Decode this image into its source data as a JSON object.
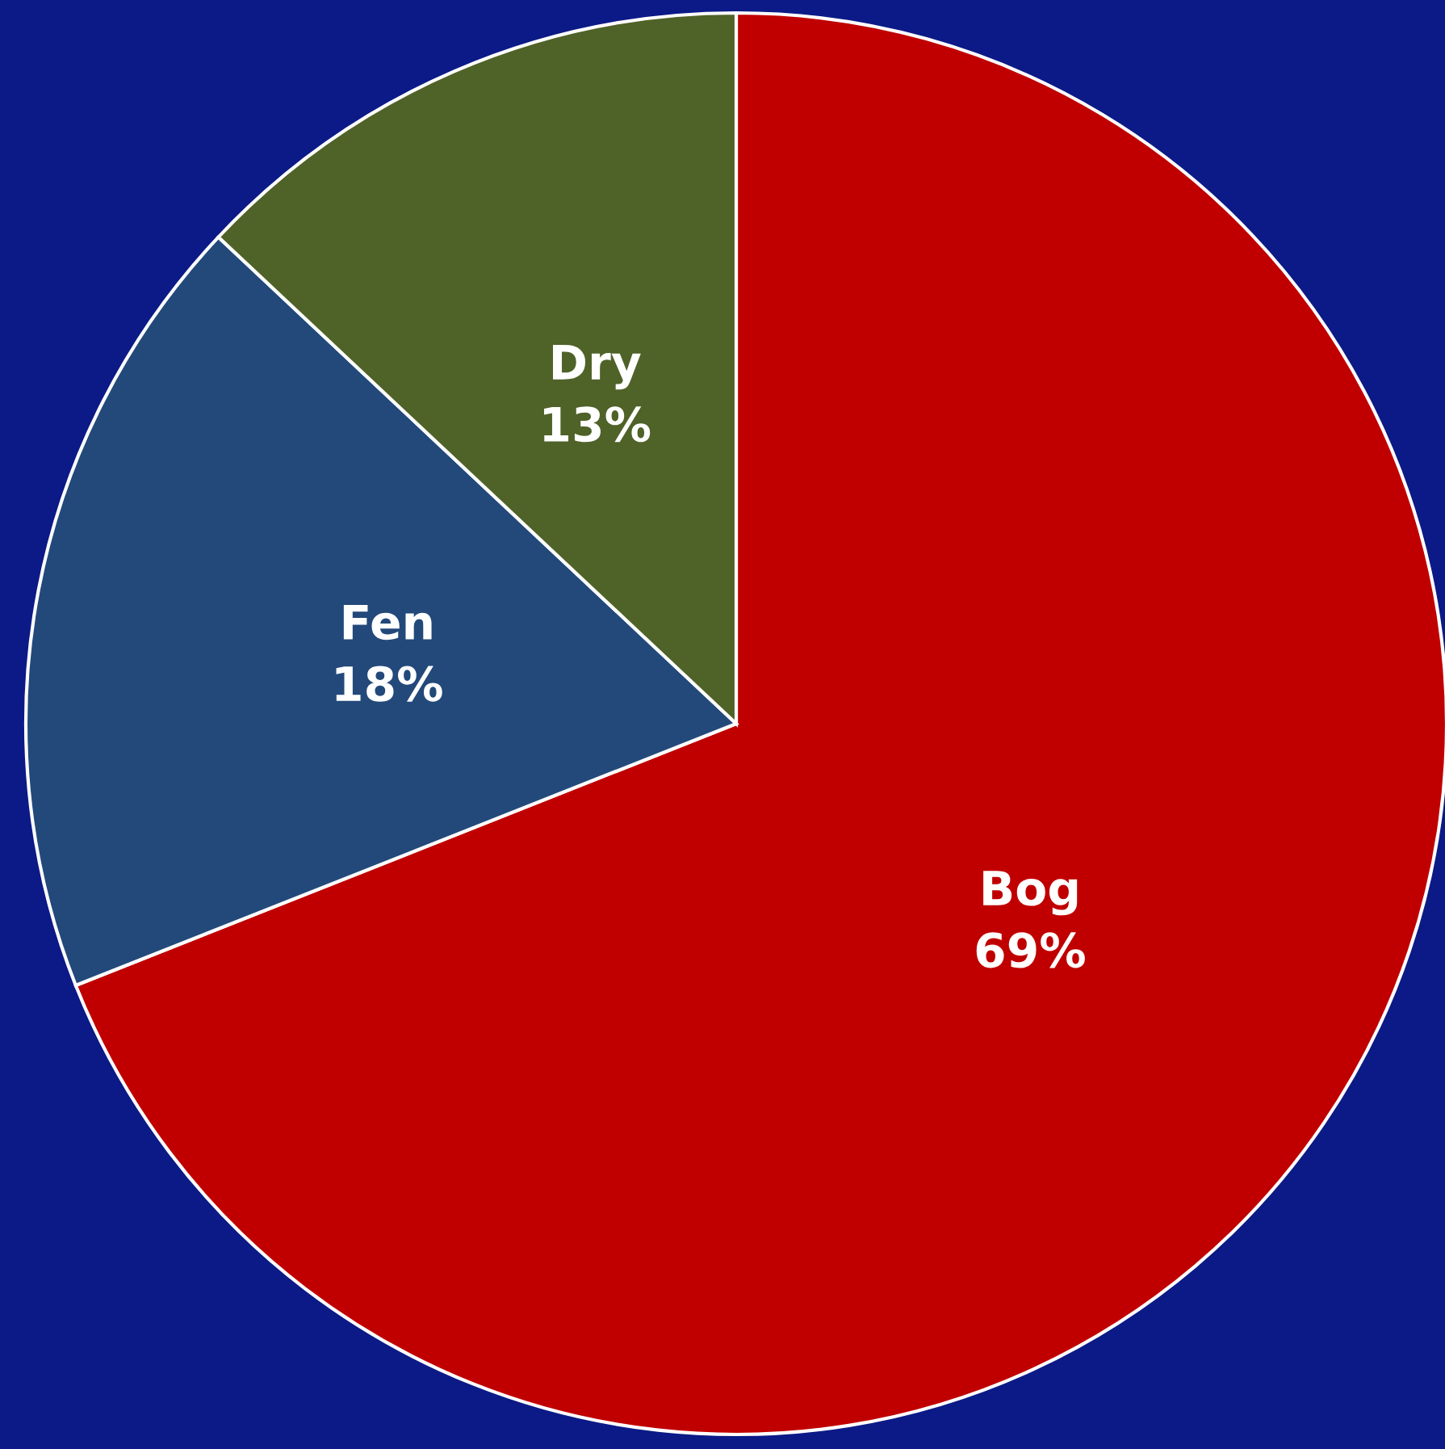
{
  "chart_data": {
    "type": "pie",
    "categories": [
      "Bog",
      "Fen",
      "Dry"
    ],
    "values": [
      69,
      18,
      13
    ],
    "value_labels": [
      "69%",
      "18%",
      "13%"
    ],
    "colors": [
      "#c00000",
      "#22497a",
      "#4f6228"
    ],
    "legend": false
  }
}
